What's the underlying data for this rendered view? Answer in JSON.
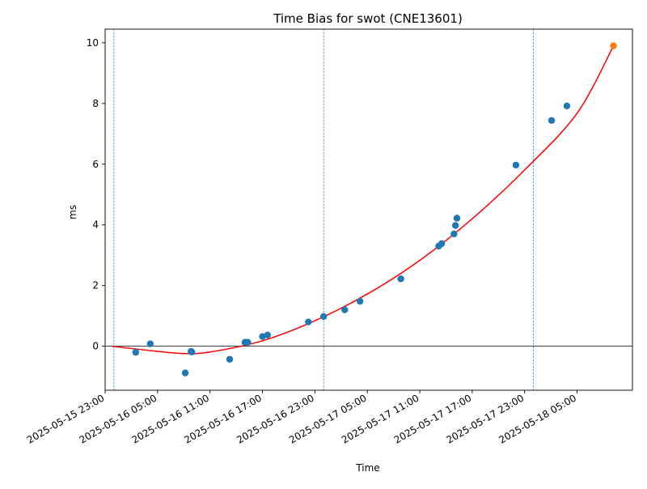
{
  "chart_data": {
    "type": "scatter",
    "title": "Time Bias for swot (CNE13601)",
    "xlabel": "Time",
    "ylabel": "ms",
    "xlim": [
      "2025-05-15 23:00",
      "2025-05-18 11:20"
    ],
    "ylim": [
      -1.45,
      10.45
    ],
    "x_ticks": [
      "2025-05-15 23:00",
      "2025-05-16 05:00",
      "2025-05-16 11:00",
      "2025-05-16 17:00",
      "2025-05-16 23:00",
      "2025-05-17 05:00",
      "2025-05-17 11:00",
      "2025-05-17 17:00",
      "2025-05-17 23:00",
      "2025-05-18 05:00"
    ],
    "y_ticks": [
      0,
      2,
      4,
      6,
      8,
      10
    ],
    "grid": false,
    "legend": "none",
    "vertical_lines": [
      "2025-05-16 00:00",
      "2025-05-17 00:00",
      "2025-05-18 00:00"
    ],
    "zero_line": 0,
    "series": [
      {
        "kind": "points",
        "color": "#1f77b4",
        "points": [
          {
            "x": "2025-05-16 02:30",
            "y": -0.2
          },
          {
            "x": "2025-05-16 04:10",
            "y": 0.08
          },
          {
            "x": "2025-05-16 08:10",
            "y": -0.88
          },
          {
            "x": "2025-05-16 08:50",
            "y": -0.17
          },
          {
            "x": "2025-05-16 08:55",
            "y": -0.19
          },
          {
            "x": "2025-05-16 13:15",
            "y": -0.43
          },
          {
            "x": "2025-05-16 15:00",
            "y": 0.13
          },
          {
            "x": "2025-05-16 15:20",
            "y": 0.13
          },
          {
            "x": "2025-05-16 17:00",
            "y": 0.32
          },
          {
            "x": "2025-05-16 17:35",
            "y": 0.37
          },
          {
            "x": "2025-05-16 22:15",
            "y": 0.8
          },
          {
            "x": "2025-05-17 00:00",
            "y": 0.98
          },
          {
            "x": "2025-05-17 02:25",
            "y": 1.2
          },
          {
            "x": "2025-05-17 04:10",
            "y": 1.48
          },
          {
            "x": "2025-05-17 08:50",
            "y": 2.22
          },
          {
            "x": "2025-05-17 13:10",
            "y": 3.3
          },
          {
            "x": "2025-05-17 13:30",
            "y": 3.38
          },
          {
            "x": "2025-05-17 14:55",
            "y": 3.7
          },
          {
            "x": "2025-05-17 15:05",
            "y": 3.98
          },
          {
            "x": "2025-05-17 15:15",
            "y": 4.22
          },
          {
            "x": "2025-05-17 22:00",
            "y": 5.97
          },
          {
            "x": "2025-05-18 02:05",
            "y": 7.44
          },
          {
            "x": "2025-05-18 03:50",
            "y": 7.92
          }
        ]
      },
      {
        "kind": "fit-curve",
        "color": "#ff0000",
        "points": [
          {
            "x": "2025-05-15 23:45",
            "y": 0.0
          },
          {
            "x": "2025-05-16 05:00",
            "y": -0.17
          },
          {
            "x": "2025-05-16 08:00",
            "y": -0.24
          },
          {
            "x": "2025-05-16 11:00",
            "y": -0.19
          },
          {
            "x": "2025-05-16 17:00",
            "y": 0.18
          },
          {
            "x": "2025-05-16 23:00",
            "y": 0.84
          },
          {
            "x": "2025-05-17 05:00",
            "y": 1.72
          },
          {
            "x": "2025-05-17 11:00",
            "y": 2.83
          },
          {
            "x": "2025-05-17 17:00",
            "y": 4.2
          },
          {
            "x": "2025-05-17 23:00",
            "y": 5.81
          },
          {
            "x": "2025-05-18 05:00",
            "y": 7.68
          },
          {
            "x": "2025-05-18 09:10",
            "y": 9.9
          }
        ]
      },
      {
        "kind": "points",
        "color": "#ff7f0e",
        "points": [
          {
            "x": "2025-05-18 09:10",
            "y": 9.9
          }
        ]
      }
    ]
  }
}
